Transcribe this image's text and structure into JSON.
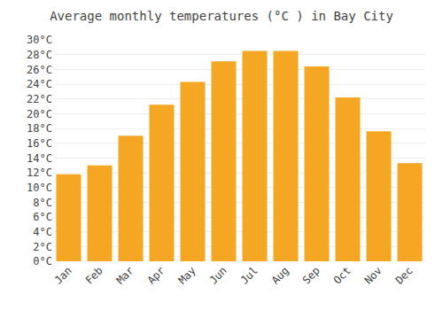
{
  "chart_data": {
    "type": "bar",
    "title": "Average monthly temperatures (°C ) in Bay City",
    "categories": [
      "Jan",
      "Feb",
      "Mar",
      "Apr",
      "May",
      "Jun",
      "Jul",
      "Aug",
      "Sep",
      "Oct",
      "Nov",
      "Dec"
    ],
    "values": [
      11.8,
      13.0,
      17.0,
      21.2,
      24.3,
      27.1,
      28.5,
      28.5,
      26.4,
      22.2,
      17.6,
      13.3
    ],
    "color": "#F5A623",
    "ylim": [
      0,
      30
    ],
    "yticks": [
      {
        "value": 0,
        "label": "0°C"
      },
      {
        "value": 2,
        "label": "2°C"
      },
      {
        "value": 4,
        "label": "4°C"
      },
      {
        "value": 6,
        "label": "6°C"
      },
      {
        "value": 8,
        "label": "8°C"
      },
      {
        "value": 10,
        "label": "10°C"
      },
      {
        "value": 12,
        "label": "12°C"
      },
      {
        "value": 14,
        "label": "14°C"
      },
      {
        "value": 16,
        "label": "16°C"
      },
      {
        "value": 18,
        "label": "18°C"
      },
      {
        "value": 20,
        "label": "20°C"
      },
      {
        "value": 22,
        "label": "22°C"
      },
      {
        "value": 24,
        "label": "24°C"
      },
      {
        "value": 26,
        "label": "26°C"
      },
      {
        "value": 28,
        "label": "28°C"
      },
      {
        "value": 30,
        "label": "30°C"
      }
    ],
    "grid": true
  }
}
